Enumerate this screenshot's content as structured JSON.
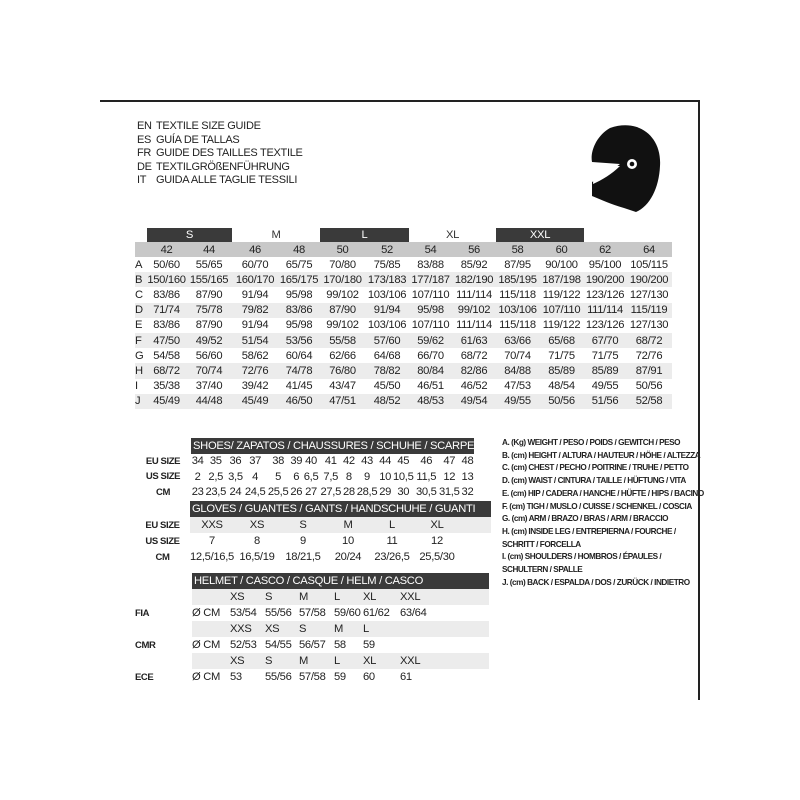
{
  "titles": [
    {
      "code": "EN",
      "text": "TEXTILE SIZE GUIDE"
    },
    {
      "code": "ES",
      "text": "GUÍA DE TALLAS"
    },
    {
      "code": "FR",
      "text": "GUIDE DES TAILLES TEXTILE"
    },
    {
      "code": "DE",
      "text": "TEXTILGRÖßENFÜHRUNG"
    },
    {
      "code": "IT",
      "text": "GUIDA ALLE TAGLIE TESSILI"
    }
  ],
  "icon": "helmet-icon",
  "textile": {
    "bands": [
      {
        "label": "",
        "span": 1,
        "dark": false
      },
      {
        "label": "S",
        "span": 2,
        "dark": true
      },
      {
        "label": "M",
        "span": 2,
        "dark": false
      },
      {
        "label": "L",
        "span": 2,
        "dark": true
      },
      {
        "label": "XL",
        "span": 2,
        "dark": false
      },
      {
        "label": "XXL",
        "span": 2,
        "dark": true
      },
      {
        "label": "",
        "span": 1,
        "dark": false
      }
    ],
    "sizes": [
      "42",
      "44",
      "46",
      "48",
      "50",
      "52",
      "54",
      "56",
      "58",
      "60",
      "62",
      "64"
    ],
    "rows": [
      {
        "letter": "A",
        "values": [
          "50/60",
          "55/65",
          "60/70",
          "65/75",
          "70/80",
          "75/85",
          "83/88",
          "85/92",
          "87/95",
          "90/100",
          "95/100",
          "105/115"
        ]
      },
      {
        "letter": "B",
        "values": [
          "150/160",
          "155/165",
          "160/170",
          "165/175",
          "170/180",
          "173/183",
          "177/187",
          "182/190",
          "185/195",
          "187/198",
          "190/200",
          "190/200"
        ]
      },
      {
        "letter": "C",
        "values": [
          "83/86",
          "87/90",
          "91/94",
          "95/98",
          "99/102",
          "103/106",
          "107/110",
          "111/114",
          "115/118",
          "119/122",
          "123/126",
          "127/130"
        ]
      },
      {
        "letter": "D",
        "values": [
          "71/74",
          "75/78",
          "79/82",
          "83/86",
          "87/90",
          "91/94",
          "95/98",
          "99/102",
          "103/106",
          "107/110",
          "111/114",
          "115/119"
        ]
      },
      {
        "letter": "E",
        "values": [
          "83/86",
          "87/90",
          "91/94",
          "95/98",
          "99/102",
          "103/106",
          "107/110",
          "111/114",
          "115/118",
          "119/122",
          "123/126",
          "127/130"
        ]
      },
      {
        "letter": "F",
        "values": [
          "47/50",
          "49/52",
          "51/54",
          "53/56",
          "55/58",
          "57/60",
          "59/62",
          "61/63",
          "63/66",
          "65/68",
          "67/70",
          "68/72"
        ]
      },
      {
        "letter": "G",
        "values": [
          "54/58",
          "56/60",
          "58/62",
          "60/64",
          "62/66",
          "64/68",
          "66/70",
          "68/72",
          "70/74",
          "71/75",
          "71/75",
          "72/76"
        ]
      },
      {
        "letter": "H",
        "values": [
          "68/72",
          "70/74",
          "72/76",
          "74/78",
          "76/80",
          "78/82",
          "80/84",
          "82/86",
          "84/88",
          "85/89",
          "85/89",
          "87/91"
        ]
      },
      {
        "letter": "I",
        "values": [
          "35/38",
          "37/40",
          "39/42",
          "41/45",
          "43/47",
          "45/50",
          "46/51",
          "46/52",
          "47/53",
          "48/54",
          "49/55",
          "50/56"
        ]
      },
      {
        "letter": "J",
        "values": [
          "45/49",
          "44/48",
          "45/49",
          "46/50",
          "47/51",
          "48/52",
          "48/53",
          "49/54",
          "49/55",
          "50/56",
          "51/56",
          "52/58"
        ]
      }
    ]
  },
  "shoes": {
    "title": "SHOES/ ZAPATOS / CHAUSSURES / SCHUHE / SCARPE",
    "rows": [
      {
        "label": "EU SIZE",
        "values": [
          "34",
          "35",
          "36",
          "37",
          "38",
          "39",
          "40",
          "41",
          "42",
          "43",
          "44",
          "45",
          "46",
          "47",
          "48"
        ]
      },
      {
        "label": "US SIZE",
        "values": [
          "2",
          "2,5",
          "3,5",
          "4",
          "5",
          "6",
          "6,5",
          "7,5",
          "8",
          "9",
          "10",
          "10,5",
          "11,5",
          "12",
          "13"
        ]
      },
      {
        "label": "CM",
        "values": [
          "23",
          "23,5",
          "24",
          "24,5",
          "25,5",
          "26",
          "27",
          "27,5",
          "28",
          "28,5",
          "29",
          "30",
          "30,5",
          "31,5",
          "32"
        ]
      }
    ]
  },
  "gloves": {
    "title": "GLOVES / GUANTES / GANTS / HANDSCHUHE / GUANTI",
    "rows": [
      {
        "label": "EU SIZE",
        "values": [
          "XXS",
          "XS",
          "S",
          "M",
          "L",
          "XL"
        ]
      },
      {
        "label": "US SIZE",
        "values": [
          "7",
          "8",
          "9",
          "10",
          "11",
          "12"
        ]
      },
      {
        "label": "CM",
        "values": [
          "12,5/16,5",
          "16,5/19",
          "18/21,5",
          "20/24",
          "23/26,5",
          "25,5/30"
        ]
      }
    ]
  },
  "helmet": {
    "title": "HELMET / CASCO / CASQUE / HELM / CASCO",
    "unit": "Ø CM",
    "groups": [
      {
        "label": "FIA",
        "sizes": [
          "XS",
          "S",
          "M",
          "L",
          "XL",
          "XXL"
        ],
        "values": [
          "53/54",
          "55/56",
          "57/58",
          "59/60",
          "61/62",
          "63/64"
        ]
      },
      {
        "label": "CMR",
        "sizes": [
          "XXS",
          "XS",
          "S",
          "M",
          "L"
        ],
        "values": [
          "52/53",
          "54/55",
          "56/57",
          "58",
          "59"
        ]
      },
      {
        "label": "ECE",
        "sizes": [
          "XS",
          "S",
          "M",
          "L",
          "XL",
          "XXL"
        ],
        "values": [
          "53",
          "55/56",
          "57/58",
          "59",
          "60",
          "61"
        ]
      }
    ]
  },
  "legend": [
    "A. (Kg) WEIGHT / PESO / POIDS / GEWITCH / PESO",
    "B. (cm) HEIGHT / ALTURA / HAUTEUR / HÖHE / ALTEZZA",
    "C. (cm) CHEST / PECHO / POITRINE / TRUHE / PETTO",
    "D. (cm) WAIST / CINTURA / TAILLE / HÜFTUNG / VITA",
    "E. (cm) HIP / CADERA / HANCHE / HÜFTE / HIPS /  BACINO",
    "F.  (cm) TIGH / MUSLO / CUISSE / SCHENKEL / COSCIA",
    "G. (cm) ARM  / BRAZO / BRAS / ARM / BRACCIO",
    "H. (cm) INSIDE LEG / ENTREPIERNA / FOURCHE /",
    "SCHRITT / FORCELLA",
    "I.  (cm) SHOULDERS / HOMBROS / ÉPAULES /",
    "SCHULTERN / SPALLE",
    "J. (cm) BACK / ESPALDA / DOS / ZURÜCK / INDIETRO"
  ],
  "colors": {
    "dark_band": "#3a3a3a",
    "size_row": "#c8c8c8",
    "shade_row": "#ececec"
  }
}
